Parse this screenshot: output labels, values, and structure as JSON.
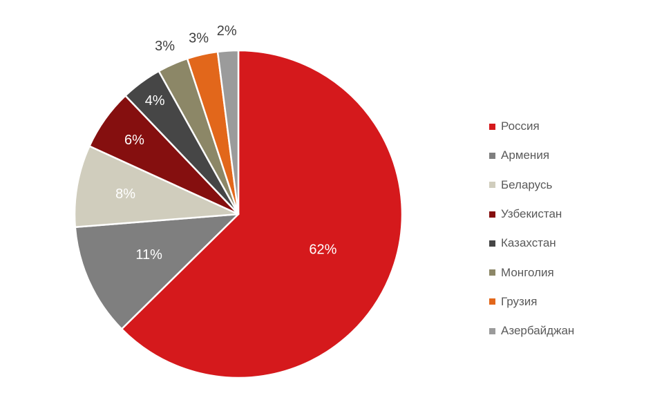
{
  "chart_data": {
    "type": "pie",
    "categories": [
      "Россия",
      "Армения",
      "Беларусь",
      "Узбекистан",
      "Казахстан",
      "Монголия",
      "Грузия",
      "Азербайджан"
    ],
    "values": [
      62,
      11,
      8,
      6,
      4,
      3,
      3,
      2
    ],
    "data_labels": [
      "62%",
      "11%",
      "8%",
      "6%",
      "4%",
      "3%",
      "3%",
      "2%"
    ],
    "colors": [
      "#d5191c",
      "#7f7f7f",
      "#d0cdbd",
      "#850f0f",
      "#464646",
      "#8c8767",
      "#e2671b",
      "#9b9b9b"
    ],
    "legend_position": "right",
    "start_angle_deg": 0,
    "direction": "clockwise"
  }
}
